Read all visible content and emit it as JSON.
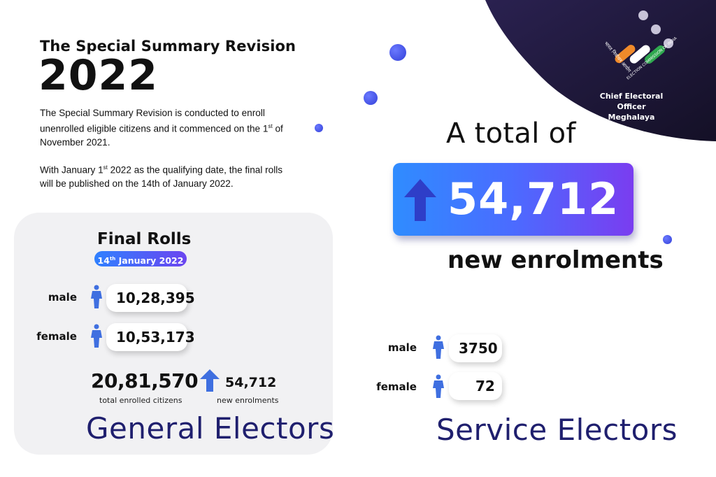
{
  "header": {
    "title_line1": "The Special Summary Revision",
    "title_year": "2022",
    "para1_a": "The Special Summary Revision is conducted to enroll unenrolled eligible citizens and it commenced on the 1",
    "para1_sup": "st",
    "para1_b": " of November 2021.",
    "para2_a": "With January 1",
    "para2_sup": "st",
    "para2_b": " 2022 as the qualifying date, the final rolls will be published on the 14th of January 2022."
  },
  "logo": {
    "icon": "election-commission-of-india-logo",
    "hindi_text": "भारत निर्वाचन आयोग",
    "english_text": "ELECTION COMMISSION OF INDIA",
    "org_line1": "Chief Electoral Officer",
    "org_line2": "Meghalaya"
  },
  "final_rolls": {
    "title": "Final Rolls",
    "date_prefix": "14",
    "date_sup": "th",
    "date_suffix": " January 2022",
    "male_label": "male",
    "male_value": "10,28,395",
    "female_label": "female",
    "female_value": "10,53,173",
    "total_value": "20,81,570",
    "total_caption": "total enrolled citizens",
    "new_value": "54,712",
    "new_caption": "new enrolments",
    "section_title": "General Electors"
  },
  "summary": {
    "lead": "A total of",
    "value": "54,712",
    "caption": "new enrolments"
  },
  "service": {
    "male_label": "male",
    "male_value": "3750",
    "female_label": "female",
    "female_value": "72",
    "section_title": "Service Electors"
  },
  "colors": {
    "accent_blue": "#3b6cff",
    "accent_purple": "#7a3df0",
    "title_navy": "#1f1f6e",
    "corner_dark": "#1e1838",
    "person_blue": "#3f6fe0"
  }
}
